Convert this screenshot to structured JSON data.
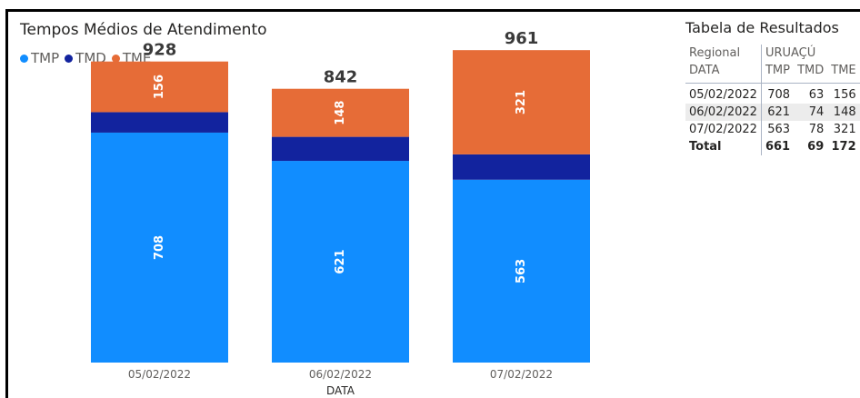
{
  "chart": {
    "title": "Tempos Médios de Atendimento",
    "legend": [
      {
        "label": "TMP",
        "color": "#118DFF"
      },
      {
        "label": "TMD",
        "color": "#12239E"
      },
      {
        "label": "TME",
        "color": "#E66C37"
      }
    ]
  },
  "chart_data": {
    "type": "bar",
    "stacked": true,
    "title": "Tempos Médios de Atendimento",
    "xlabel": "DATA",
    "ylabel": "",
    "categories": [
      "05/02/2022",
      "06/02/2022",
      "07/02/2022"
    ],
    "series": [
      {
        "name": "TMP",
        "values": [
          708,
          621,
          563
        ],
        "color": "#118DFF",
        "labels": [
          "708",
          "621",
          "563"
        ]
      },
      {
        "name": "TMD",
        "values": [
          63,
          74,
          78
        ],
        "color": "#12239E",
        "labels": [
          "",
          "",
          ""
        ]
      },
      {
        "name": "TME",
        "values": [
          156,
          148,
          321
        ],
        "color": "#E66C37",
        "labels": [
          "156",
          "148",
          "321"
        ]
      }
    ],
    "totals": [
      "928",
      "842",
      "961"
    ],
    "ylim": [
      0,
      1080
    ],
    "grid": false,
    "legend_position": "top-left"
  },
  "table": {
    "title": "Tabela de Resultados",
    "regional_label": "Regional",
    "regional_value": "URUAÇÚ",
    "date_header": "DATA",
    "columns": [
      "TMP",
      "TMD",
      "TME"
    ],
    "rows": [
      {
        "date": "05/02/2022",
        "tmp": "708",
        "tmd": "63",
        "tme": "156"
      },
      {
        "date": "06/02/2022",
        "tmp": "621",
        "tmd": "74",
        "tme": "148"
      },
      {
        "date": "07/02/2022",
        "tmp": "563",
        "tmd": "78",
        "tme": "321"
      }
    ],
    "total": {
      "label": "Total",
      "tmp": "661",
      "tmd": "69",
      "tme": "172"
    }
  }
}
